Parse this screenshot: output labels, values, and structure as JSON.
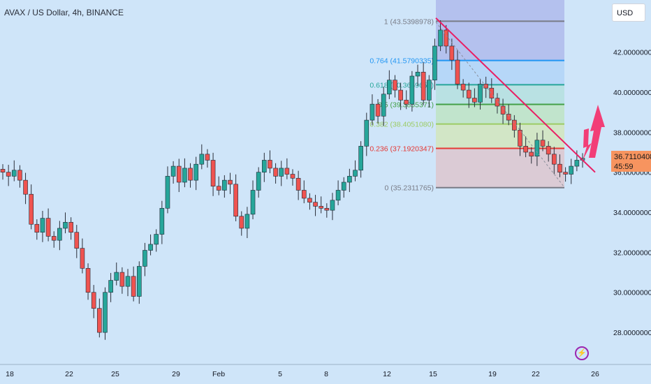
{
  "title": "AVAX / US Dollar, 4h, BINANCE",
  "currency_button": "USD",
  "last_price": {
    "price": "36.7110408",
    "countdown": "45:59"
  },
  "colors": {
    "background": "#cfe5f9",
    "up": "#26a69a",
    "down": "#ef5350",
    "trendline": "#e91e63",
    "arrow": "#f23e77"
  },
  "fibonacci": {
    "levels": [
      {
        "label": "1 (43.5398978)",
        "value": 43.54,
        "color": "#787b86",
        "fill": "#b0bcec"
      },
      {
        "label": "0.764 (41.5790335)",
        "value": 41.579,
        "color": "#2196f3",
        "fill": "#b3d5f7"
      },
      {
        "label": "0.618 (40.3659652)",
        "value": 40.366,
        "color": "#26a69a",
        "fill": "#b6e0e0"
      },
      {
        "label": "0.5 (39.3855371)",
        "value": 39.386,
        "color": "#43a047",
        "fill": "#bfe3c7"
      },
      {
        "label": "0.382 (38.4051080)",
        "value": 38.405,
        "color": "#9ccc65",
        "fill": "#d2e5c0"
      },
      {
        "label": "0.236 (37.1920347)",
        "value": 37.192,
        "color": "#e53935",
        "fill": "#dcc8d0"
      },
      {
        "label": "0 (35.2311765)",
        "value": 35.231,
        "color": "#787b86",
        "fill": null
      }
    ]
  },
  "chart_data": {
    "type": "candlestick",
    "title": "AVAX / US Dollar, 4h, BINANCE",
    "y_axis": {
      "labels": [
        "42.0000000",
        "40.0000000",
        "38.0000000",
        "36.0000000",
        "34.0000000",
        "32.0000000",
        "30.0000000",
        "28.0000000"
      ],
      "values": [
        42,
        40,
        38,
        36,
        34,
        32,
        30,
        28
      ],
      "range": [
        26.4,
        44.6
      ]
    },
    "x_axis": {
      "labels": [
        "18",
        "22",
        "25",
        "29",
        "Feb",
        "5",
        "8",
        "12",
        "15",
        "19",
        "22",
        "26"
      ]
    },
    "close_series": [
      36.0,
      35.8,
      36.1,
      35.6,
      34.9,
      33.4,
      33.0,
      33.7,
      32.8,
      32.6,
      33.2,
      33.5,
      33.0,
      32.2,
      31.2,
      30.0,
      29.2,
      28.0,
      30.0,
      30.6,
      31.0,
      30.3,
      30.8,
      29.8,
      31.3,
      32.1,
      32.4,
      32.9,
      34.2,
      35.8,
      36.3,
      35.5,
      36.2,
      35.6,
      36.4,
      36.9,
      36.6,
      35.3,
      35.1,
      35.6,
      35.4,
      33.8,
      33.2,
      33.9,
      35.1,
      36.0,
      36.6,
      36.2,
      35.8,
      36.2,
      35.9,
      35.7,
      35.1,
      34.7,
      34.5,
      34.3,
      34.2,
      34.1,
      34.6,
      35.1,
      35.5,
      35.8,
      36.1,
      37.3,
      38.6,
      39.4,
      38.8,
      39.9,
      40.6,
      40.1,
      39.6,
      39.4,
      40.8,
      41.0,
      39.6,
      40.6,
      42.3,
      43.1,
      42.3,
      41.6,
      40.4,
      40.1,
      39.7,
      39.5,
      40.4,
      40.2,
      39.7,
      39.3,
      38.9,
      38.6,
      38.1,
      37.3,
      37.0,
      36.8,
      37.6,
      37.3,
      36.9,
      36.4,
      36.0,
      35.9,
      36.3,
      36.6,
      36.7
    ]
  }
}
